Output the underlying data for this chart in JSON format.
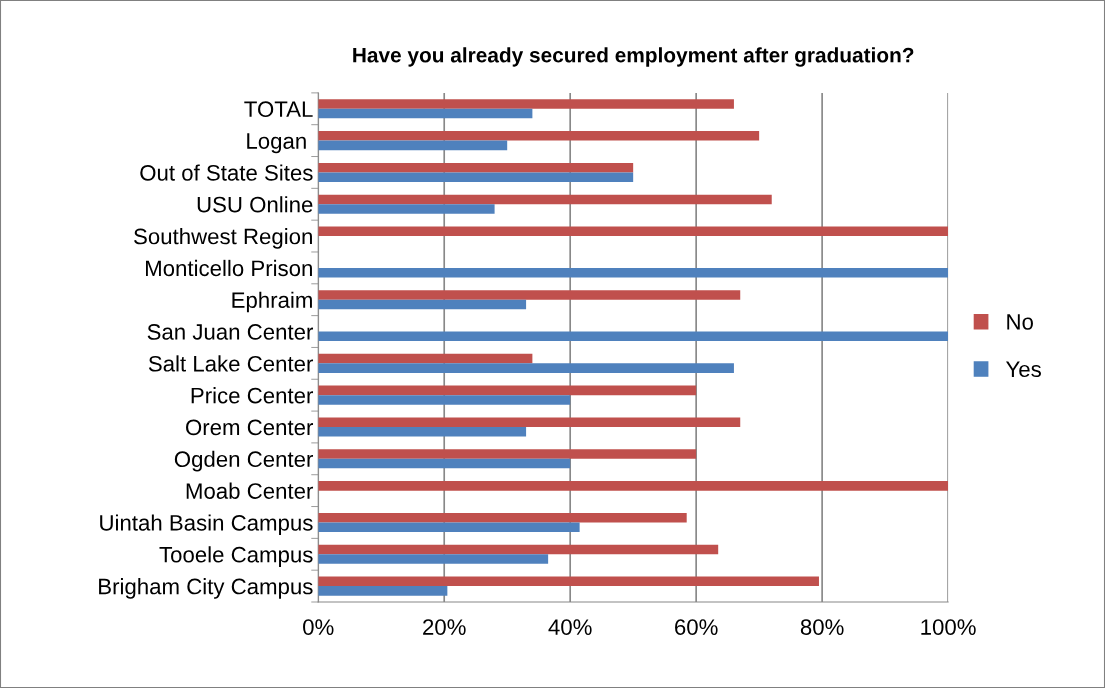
{
  "chart_data": {
    "type": "bar",
    "orientation": "horizontal",
    "title": "Have you already secured employment after graduation?",
    "categories": [
      "TOTAL",
      "Logan ",
      "Out of State Sites",
      "USU Online",
      "Southwest Region",
      "Monticello Prison",
      "Ephraim",
      "San Juan Center",
      "Salt Lake Center",
      "Price Center",
      "Orem Center",
      "Ogden Center",
      "Moab Center",
      "Uintah Basin Campus",
      "Tooele Campus",
      "Brigham City Campus"
    ],
    "series": [
      {
        "name": "No",
        "color": "#c0504d",
        "values": [
          66,
          70,
          50,
          72,
          100,
          0,
          67,
          0,
          34,
          60,
          67,
          60,
          100,
          58.5,
          63.5,
          79.5
        ]
      },
      {
        "name": "Yes",
        "color": "#4f81bd",
        "values": [
          34,
          30,
          50,
          28,
          0,
          100,
          33,
          100,
          66,
          40,
          33,
          40,
          0,
          41.5,
          36.5,
          20.5
        ]
      }
    ],
    "xlim": [
      0,
      100
    ],
    "xticks": [
      {
        "value": 0,
        "label": "0%"
      },
      {
        "value": 20,
        "label": "20%"
      },
      {
        "value": 40,
        "label": "40%"
      },
      {
        "value": 60,
        "label": "60%"
      },
      {
        "value": 80,
        "label": "80%"
      },
      {
        "value": 100,
        "label": "100%"
      }
    ],
    "grid": "x",
    "legend": "right"
  }
}
